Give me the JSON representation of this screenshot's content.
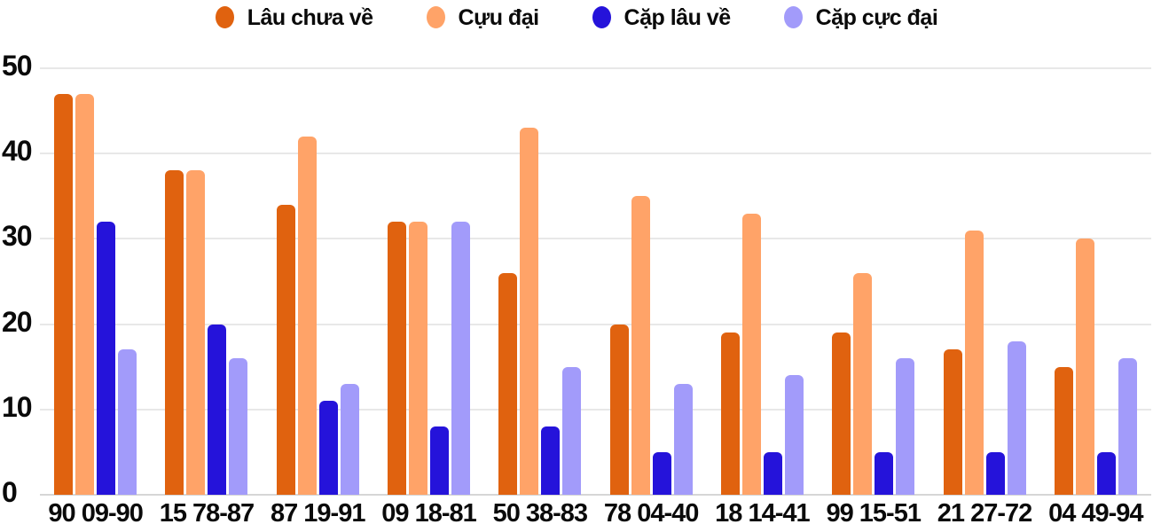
{
  "chart_data": {
    "type": "bar",
    "title": "",
    "categories": [
      "90 09-90",
      "15 78-87",
      "87 19-91",
      "09 18-81",
      "50 38-83",
      "78 04-40",
      "18 14-41",
      "99 15-51",
      "21 27-72",
      "04 49-94"
    ],
    "series": [
      {
        "name": "Lâu chưa về",
        "color": "#e0620f",
        "values": [
          47,
          38,
          34,
          32,
          26,
          20,
          19,
          19,
          17,
          15
        ]
      },
      {
        "name": "Cựu đại",
        "color": "#ffa368",
        "values": [
          47,
          38,
          42,
          32,
          43,
          35,
          33,
          26,
          31,
          30
        ]
      },
      {
        "name": "Cặp lâu về",
        "color": "#2513da",
        "values": [
          32,
          20,
          11,
          8,
          8,
          5,
          5,
          5,
          5,
          5
        ]
      },
      {
        "name": "Cặp cực đại",
        "color": "#a29bfa",
        "values": [
          17,
          16,
          13,
          32,
          15,
          13,
          14,
          16,
          18,
          16
        ]
      }
    ],
    "xlabel": "",
    "ylabel": "",
    "y_axis": {
      "min": 0,
      "max": 50,
      "ticks": [
        0,
        10,
        20,
        30,
        40,
        50
      ]
    },
    "grid": true,
    "legend_position": "top"
  },
  "colors": {
    "background": "#ffffff",
    "gridline": "#e8e8e8",
    "axis_line": "#d6d6d6",
    "text": "#0a0a0a"
  }
}
